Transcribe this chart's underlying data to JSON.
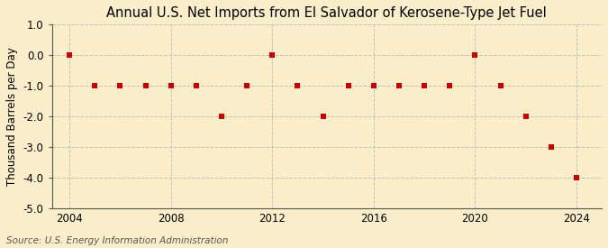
{
  "title": "Annual U.S. Net Imports from El Salvador of Kerosene-Type Jet Fuel",
  "ylabel": "Thousand Barrels per Day",
  "source": "Source: U.S. Energy Information Administration",
  "years": [
    2004,
    2005,
    2006,
    2007,
    2008,
    2009,
    2010,
    2011,
    2012,
    2013,
    2014,
    2015,
    2016,
    2017,
    2018,
    2019,
    2020,
    2021,
    2022,
    2023,
    2024
  ],
  "values": [
    0,
    -1,
    -1,
    -1,
    -1,
    -1,
    -2,
    -1,
    0,
    -1,
    -2,
    -1,
    -1,
    -1,
    -1,
    -1,
    0,
    -1,
    -2,
    -3,
    -4
  ],
  "ylim": [
    -5.0,
    1.0
  ],
  "yticks": [
    -5,
    -4,
    -3,
    -2,
    -1,
    0,
    1
  ],
  "xlim": [
    2003.3,
    2025.0
  ],
  "xticks": [
    2004,
    2008,
    2012,
    2016,
    2020,
    2024
  ],
  "marker_color": "#cc0000",
  "marker": "s",
  "marker_size": 4,
  "bg_color": "#faeeca",
  "grid_color": "#bbbbbb",
  "title_fontsize": 10.5,
  "label_fontsize": 8.5,
  "tick_fontsize": 8.5,
  "source_fontsize": 7.5
}
